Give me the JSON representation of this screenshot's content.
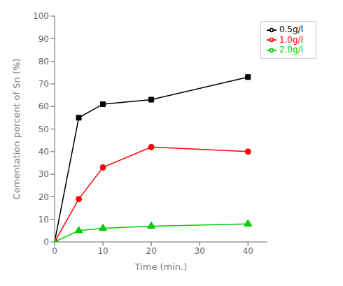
{
  "chart_data": {
    "type": "line",
    "xlabel": "Time (min.)",
    "ylabel": "Cementation percent of Sn (%)",
    "x": [
      0,
      5,
      10,
      20,
      40
    ],
    "series": [
      {
        "name": "0.5g/l",
        "color": "#000000",
        "marker": "square",
        "values": [
          0,
          55,
          61,
          63,
          73
        ]
      },
      {
        "name": "1.0g/l",
        "color": "#ff0000",
        "marker": "circle",
        "values": [
          0,
          19,
          33,
          42,
          40
        ]
      },
      {
        "name": "2.0g/l",
        "color": "#00cc00",
        "marker": "triangle",
        "values": [
          0,
          5,
          6,
          7,
          8
        ]
      }
    ],
    "xlim": [
      0,
      44
    ],
    "ylim": [
      0,
      100
    ],
    "xticks": [
      0,
      10,
      20,
      30,
      40
    ],
    "yticks": [
      0,
      10,
      20,
      30,
      40,
      50,
      60,
      70,
      80,
      90,
      100
    ],
    "legend": "upper right",
    "grid": false
  }
}
